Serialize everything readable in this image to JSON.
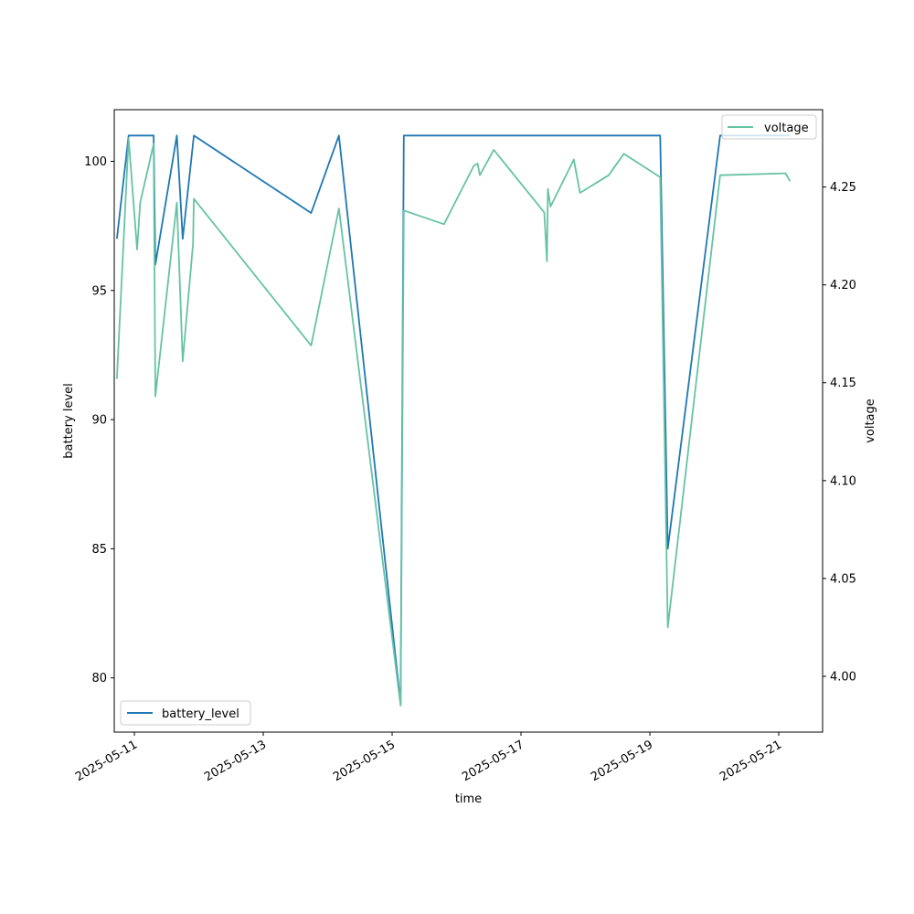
{
  "chart_data": {
    "type": "line",
    "xlabel": "time",
    "ylabel": "battery level",
    "y2label": "voltage",
    "x_tick_labels": [
      "2025-05-11",
      "2025-05-13",
      "2025-05-15",
      "2025-05-17",
      "2025-05-19",
      "2025-05-21"
    ],
    "x_ticks": [
      "2025-05-11T00:00",
      "2025-05-13T00:00",
      "2025-05-15T00:00",
      "2025-05-17T00:00",
      "2025-05-19T00:00",
      "2025-05-21T00:00"
    ],
    "xlim": [
      "2025-05-10T16:30",
      "2025-05-21T16:20"
    ],
    "ylim": [
      77.9,
      102.0
    ],
    "y_ticks": [
      80,
      85,
      90,
      95,
      100
    ],
    "y2lim": [
      3.9715,
      4.2895
    ],
    "y2_ticks": [
      "4.00",
      "4.05",
      "4.10",
      "4.15",
      "4.20",
      "4.25"
    ],
    "grid": false,
    "series": [
      {
        "name": "battery_level",
        "axis": "left",
        "color": "#1f77b4",
        "legend_position": "lower-left",
        "points": [
          [
            "2025-05-10T17:30",
            97
          ],
          [
            "2025-05-10T21:50",
            101
          ],
          [
            "2025-05-11T03:50",
            101
          ],
          [
            "2025-05-11T07:10",
            101
          ],
          [
            "2025-05-11T07:50",
            96
          ],
          [
            "2025-05-11T15:50",
            101
          ],
          [
            "2025-05-11T18:00",
            97
          ],
          [
            "2025-05-11T22:10",
            101
          ],
          [
            "2025-05-13T17:50",
            98
          ],
          [
            "2025-05-14T04:10",
            101
          ],
          [
            "2025-05-15T03:10",
            79
          ],
          [
            "2025-05-15T04:20",
            101
          ],
          [
            "2025-05-17T12:00",
            101
          ],
          [
            "2025-05-19T03:50",
            101
          ],
          [
            "2025-05-19T06:40",
            85
          ],
          [
            "2025-05-20T02:10",
            101
          ],
          [
            "2025-05-21T04:10",
            101
          ]
        ]
      },
      {
        "name": "voltage",
        "axis": "right",
        "color": "#66c2a5",
        "legend_position": "upper-right",
        "points": [
          [
            "2025-05-10T17:30",
            4.152
          ],
          [
            "2025-05-10T21:50",
            4.275
          ],
          [
            "2025-05-11T01:00",
            4.218
          ],
          [
            "2025-05-11T02:10",
            4.242
          ],
          [
            "2025-05-11T07:10",
            4.272
          ],
          [
            "2025-05-11T07:50",
            4.143
          ],
          [
            "2025-05-11T15:50",
            4.242
          ],
          [
            "2025-05-11T18:00",
            4.161
          ],
          [
            "2025-05-11T21:50",
            4.221
          ],
          [
            "2025-05-11T22:10",
            4.244
          ],
          [
            "2025-05-13T17:50",
            4.169
          ],
          [
            "2025-05-14T04:10",
            4.239
          ],
          [
            "2025-05-15T03:10",
            3.985
          ],
          [
            "2025-05-15T04:20",
            4.238
          ],
          [
            "2025-05-15T19:20",
            4.231
          ],
          [
            "2025-05-16T06:30",
            4.261
          ],
          [
            "2025-05-16T07:50",
            4.262
          ],
          [
            "2025-05-16T08:40",
            4.256
          ],
          [
            "2025-05-16T13:50",
            4.269
          ],
          [
            "2025-05-17T08:40",
            4.237
          ],
          [
            "2025-05-17T09:40",
            4.212
          ],
          [
            "2025-05-17T10:00",
            4.249
          ],
          [
            "2025-05-17T11:00",
            4.24
          ],
          [
            "2025-05-17T19:40",
            4.264
          ],
          [
            "2025-05-17T22:00",
            4.247
          ],
          [
            "2025-05-18T08:40",
            4.256
          ],
          [
            "2025-05-18T14:20",
            4.267
          ],
          [
            "2025-05-19T03:50",
            4.255
          ],
          [
            "2025-05-19T06:40",
            4.025
          ],
          [
            "2025-05-20T02:10",
            4.256
          ],
          [
            "2025-05-21T02:30",
            4.257
          ],
          [
            "2025-05-21T04:10",
            4.253
          ]
        ]
      }
    ]
  }
}
